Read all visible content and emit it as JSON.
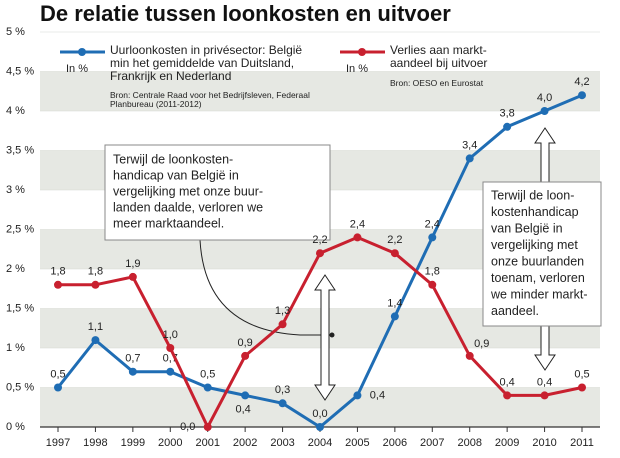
{
  "chart_data": {
    "type": "line",
    "title": "De relatie tussen loonkosten en uitvoer",
    "categories": [
      "1997",
      "1998",
      "1999",
      "2000",
      "2001",
      "2002",
      "2003",
      "2004",
      "2005",
      "2006",
      "2007",
      "2008",
      "2009",
      "2010",
      "2011"
    ],
    "series": [
      {
        "name": "Uurloonkosten in privésector: België min het gemiddelde van Duitsland, Frankrijk en Nederland",
        "unit": "In %",
        "source": "Bron: Centrale Raad voor het Bedrijfsleven, Federaal Planbureau (2011-2012)",
        "color": "#1f6db4",
        "values": [
          0.5,
          1.1,
          0.7,
          0.7,
          0.5,
          0.4,
          0.3,
          0.0,
          0.4,
          1.4,
          2.4,
          3.4,
          3.8,
          4.0,
          4.2
        ],
        "value_labels": [
          "0,5",
          "1,1",
          "0,7",
          "0,7",
          "0,5",
          "0,4",
          "0,3",
          "0,0",
          "0,4",
          "1,4",
          "2,4",
          "3,4",
          "3,8",
          "4,0",
          "4,2"
        ]
      },
      {
        "name": "Verlies aan markt-aandeel bij uitvoer",
        "unit": "In %",
        "source": "Bron: OESO en Eurostat",
        "color": "#c8202f",
        "values": [
          1.8,
          1.8,
          1.9,
          1.0,
          0.0,
          0.9,
          1.3,
          2.2,
          2.4,
          2.2,
          1.8,
          0.9,
          0.4,
          0.4,
          0.5
        ],
        "value_labels": [
          "1,8",
          "1,8",
          "1,9",
          "1,0",
          "0,0",
          "0,9",
          "1,3",
          "2,2",
          "2,4",
          "2,2",
          "1,8",
          "0,9",
          "0,4",
          "0,4",
          "0,5"
        ]
      }
    ],
    "ylim": [
      0,
      5
    ],
    "yticks": [
      {
        "value": 0,
        "label": "0 %"
      },
      {
        "value": 0.5,
        "label": "0,5 %"
      },
      {
        "value": 1,
        "label": "1 %"
      },
      {
        "value": 1.5,
        "label": "1,5 %"
      },
      {
        "value": 2,
        "label": "2 %"
      },
      {
        "value": 2.5,
        "label": "2,5 %"
      },
      {
        "value": 3,
        "label": "3 %"
      },
      {
        "value": 3.5,
        "label": "3,5 %"
      },
      {
        "value": 4,
        "label": "4 %"
      },
      {
        "value": 4.5,
        "label": "4,5 %"
      },
      {
        "value": 5,
        "label": "5 %"
      }
    ],
    "grid": true,
    "annotations": [
      {
        "lines": [
          "Terwijl de loonkosten-",
          "handicap van België in",
          "vergelijking met onze buur-",
          "landen daalde, verloren we",
          "meer marktaandeel."
        ]
      },
      {
        "lines": [
          "Terwijl de loon-",
          "kostenhandicap",
          "van België in",
          "vergelijking met",
          "onze buurlanden",
          "toenam, verloren",
          "we minder markt-",
          "aandeel."
        ]
      }
    ]
  }
}
